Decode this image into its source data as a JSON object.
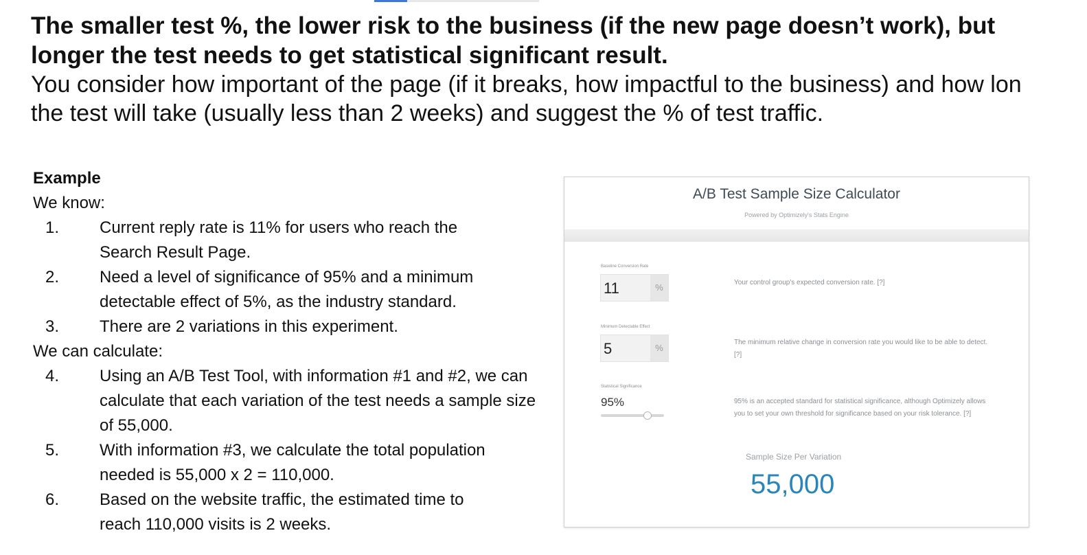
{
  "headline": {
    "line1": "The smaller test %, the lower risk to the business (if the new page doesn’t work), but",
    "line2": "longer the test needs to get statistical significant result."
  },
  "intro": {
    "line1": "You consider how important of the page (if it breaks, how impactful to the business) and how lon",
    "line2": "the test will take (usually less than 2 weeks) and suggest the % of test traffic."
  },
  "slide_progress": 0.2,
  "example": {
    "title": "Example",
    "we_know": "We know:",
    "known": [
      {
        "num": "1.",
        "text": "Current reply rate is 11% for users who reach the Search Result Page."
      },
      {
        "num": "2.",
        "text": "Need a level of significance of 95% and a minimum detectable effect of 5%, as the industry standard."
      },
      {
        "num": "3.",
        "text": "There are 2 variations in this experiment."
      }
    ],
    "we_can": "We can calculate:",
    "calculated": [
      {
        "num": "4.",
        "text": "Using an A/B Test Tool, with information #1 and #2, we can calculate that each variation of the test needs a sample size of 55,000."
      },
      {
        "num": "5.",
        "text": "With information #3, we calculate the total population needed is 55,000 x 2 = 110,000."
      },
      {
        "num": "6.",
        "text": "Based on the website traffic, the estimated time to reach 110,000 visits is 2 weeks."
      }
    ]
  },
  "calculator": {
    "title": "A/B Test Sample Size Calculator",
    "subtitle": "Powered by Optimizely's Stats Engine",
    "baseline": {
      "label": "Baseline Conversion Rate",
      "value": "11",
      "unit": "%",
      "help": "Your control group's expected conversion rate. [?]"
    },
    "mde": {
      "label": "Minimum Detectable Effect",
      "value": "5",
      "unit": "%",
      "help": "The minimum relative change in conversion rate you would like to be able to detect. [?]"
    },
    "significance": {
      "label": "Statistical Significance",
      "value": "95%",
      "help": "95% is an accepted standard for statistical significance, although Optimizely allows you to set your own threshold for significance based on your risk tolerance. [?]"
    },
    "result_label": "Sample Size Per Variation",
    "result_value": "55,000"
  }
}
